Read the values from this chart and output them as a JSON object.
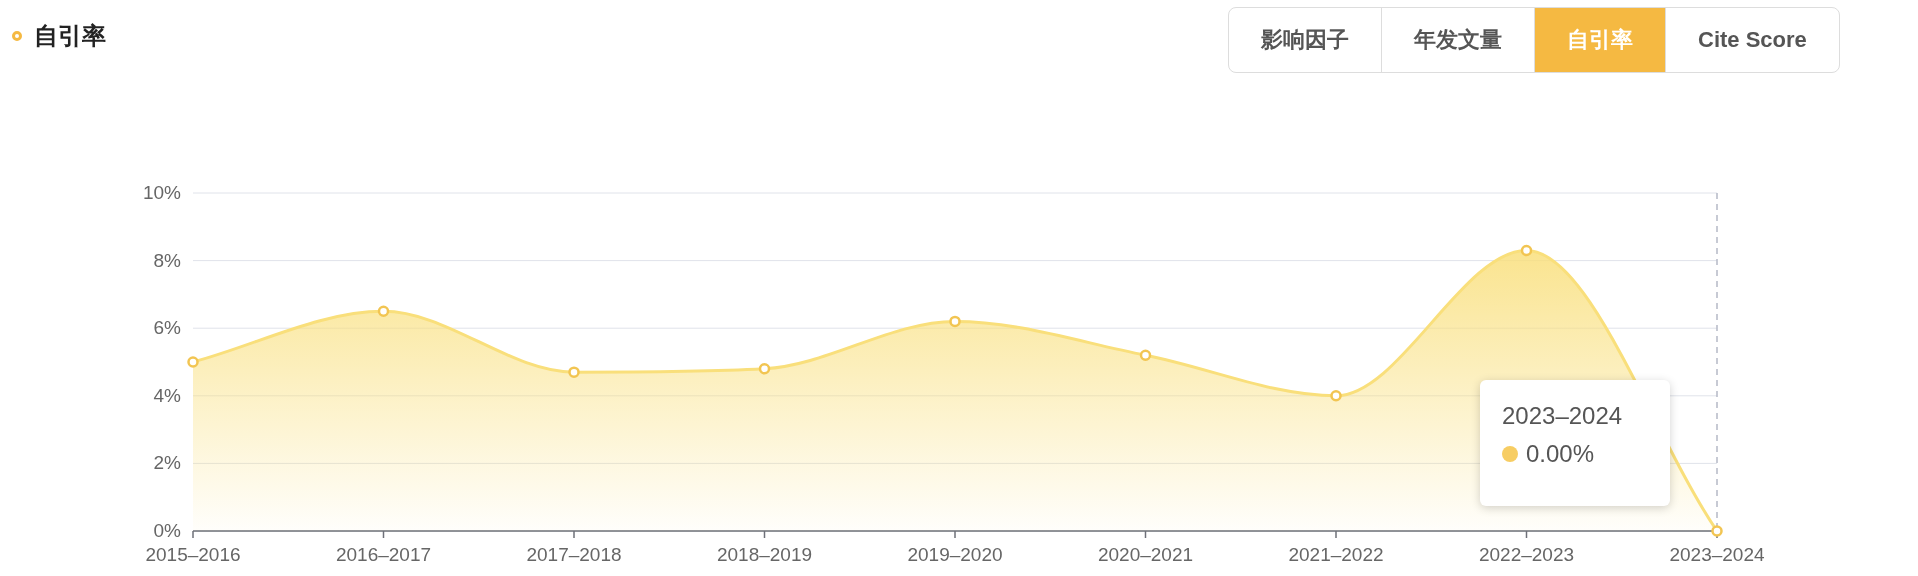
{
  "chart_data": {
    "type": "area",
    "title": "自引率",
    "categories": [
      "2015–2016",
      "2016–2017",
      "2017–2018",
      "2018–2019",
      "2019–2020",
      "2020–2021",
      "2021–2022",
      "2022–2023",
      "2023–2024"
    ],
    "series": [
      {
        "color": "#f9df7b",
        "values": [
          5.0,
          6.5,
          4.7,
          4.8,
          6.2,
          5.2,
          4.0,
          8.3,
          0
        ]
      }
    ],
    "ylim": [
      0,
      10
    ],
    "yticks": [
      {
        "value": 0,
        "label": "0%"
      },
      {
        "value": 2,
        "label": "2%"
      },
      {
        "value": 4,
        "label": "4%"
      },
      {
        "value": 6,
        "label": "6%"
      },
      {
        "value": 8,
        "label": "8%"
      },
      {
        "value": 10,
        "label": "10%"
      }
    ],
    "grid": "y",
    "marker": "circle",
    "ref_lines": [
      {
        "axis": "x",
        "value": "2023–2024",
        "color": "#b5b9c6",
        "line_style": "dashed"
      }
    ],
    "annotations": [
      "影响因子",
      "年发文量",
      "自引率",
      "Cite Score",
      "2023–2024",
      "0.00%"
    ]
  }
}
